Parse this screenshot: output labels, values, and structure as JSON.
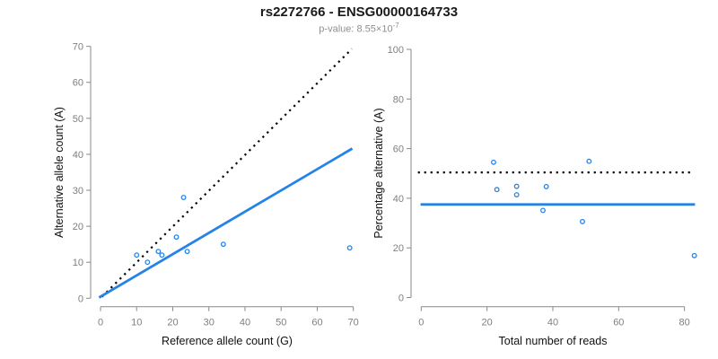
{
  "header": {
    "title": "rs2272766 - ENSG00000164733",
    "subtitle_base": "p-value: 8.55×10",
    "subtitle_exponent": "-7"
  },
  "colors": {
    "accent_blue": "#2583e6",
    "dotted_line_black": "#000000",
    "tick_label_gray": "#7f7f7f",
    "axis_gray": "#898989",
    "subtitle_gray": "#8f8f8f"
  },
  "chart_data": [
    {
      "type": "scatter",
      "xlabel": "Reference allele count (G)",
      "ylabel": "Alternative allele count (A)",
      "xlim": [
        0,
        70
      ],
      "ylim": [
        0,
        70
      ],
      "xticks": [
        0,
        10,
        20,
        30,
        40,
        50,
        60,
        70
      ],
      "yticks": [
        0,
        10,
        20,
        30,
        40,
        50,
        60,
        70
      ],
      "grid": false,
      "point_color": "#2583e6",
      "points": [
        {
          "x": 10,
          "y": 12
        },
        {
          "x": 13,
          "y": 10
        },
        {
          "x": 16,
          "y": 13
        },
        {
          "x": 17,
          "y": 12
        },
        {
          "x": 21,
          "y": 17
        },
        {
          "x": 23,
          "y": 28
        },
        {
          "x": 24,
          "y": 13
        },
        {
          "x": 34,
          "y": 15
        },
        {
          "x": 69,
          "y": 14
        }
      ],
      "lines": [
        {
          "name": "identity-line",
          "style": "dotted",
          "color": "#000000",
          "x1": 0.4,
          "y1": 0.4,
          "x2": 69.6,
          "y2": 69.3
        },
        {
          "name": "regression-line",
          "style": "solid",
          "color": "#2583e6",
          "x1": -0.4,
          "y1": 0.2,
          "x2": 69.7,
          "y2": 41.6
        }
      ]
    },
    {
      "type": "scatter",
      "xlabel": "Total number of reads",
      "ylabel": "Percentage alternative (A)",
      "xlim": [
        0,
        83
      ],
      "ylim": [
        0,
        100
      ],
      "xticks": [
        0,
        20,
        40,
        60,
        80
      ],
      "yticks": [
        0,
        20,
        40,
        60,
        80,
        100
      ],
      "grid": false,
      "point_color": "#2583e6",
      "points": [
        {
          "x": 22,
          "y": 54.5
        },
        {
          "x": 23,
          "y": 43.5
        },
        {
          "x": 29,
          "y": 44.8
        },
        {
          "x": 29,
          "y": 41.4
        },
        {
          "x": 37,
          "y": 35.1
        },
        {
          "x": 38,
          "y": 44.7
        },
        {
          "x": 49,
          "y": 30.6
        },
        {
          "x": 51,
          "y": 54.9
        },
        {
          "x": 83,
          "y": 16.9
        }
      ],
      "lines": [
        {
          "name": "fifty-percent-line",
          "style": "dotted",
          "color": "#000000",
          "x1": -1.0,
          "y1": 50.4,
          "x2": 82.6,
          "y2": 50.4
        },
        {
          "name": "mean-percentage-line",
          "style": "solid",
          "color": "#2583e6",
          "x1": -0.2,
          "y1": 37.5,
          "x2": 83.2,
          "y2": 37.5
        }
      ]
    }
  ]
}
